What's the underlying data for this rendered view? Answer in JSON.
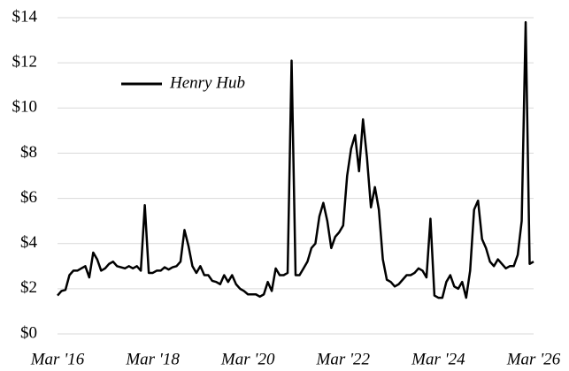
{
  "chart_data": {
    "type": "line",
    "categories": [
      "Mar '16",
      null,
      null,
      null,
      null,
      null,
      null,
      null,
      null,
      null,
      null,
      null,
      null,
      null,
      null,
      null,
      null,
      null,
      null,
      null,
      null,
      null,
      null,
      null,
      "Mar '18",
      null,
      null,
      null,
      null,
      null,
      null,
      null,
      null,
      null,
      null,
      null,
      null,
      null,
      null,
      null,
      null,
      null,
      null,
      null,
      null,
      null,
      null,
      null,
      "Mar '20",
      null,
      null,
      null,
      null,
      null,
      null,
      null,
      null,
      null,
      null,
      null,
      null,
      null,
      null,
      null,
      null,
      null,
      null,
      null,
      null,
      null,
      null,
      null,
      "Mar '22",
      null,
      null,
      null,
      null,
      null,
      null,
      null,
      null,
      null,
      null,
      null,
      null,
      null,
      null,
      null,
      null,
      null,
      null,
      null,
      null,
      null,
      null,
      null,
      "Mar '24",
      null,
      null,
      null,
      null,
      null,
      null,
      null,
      null,
      null,
      null,
      null,
      null,
      null,
      null,
      null,
      null,
      null,
      null,
      null,
      null,
      null,
      null,
      null,
      "Mar '26"
    ],
    "series": [
      {
        "name": "Henry Hub",
        "color": "#000000",
        "values": [
          1.7,
          1.9,
          1.95,
          2.6,
          2.8,
          2.8,
          2.9,
          3.0,
          2.5,
          3.6,
          3.3,
          2.8,
          2.9,
          3.1,
          3.2,
          3.0,
          2.95,
          2.9,
          3.0,
          2.9,
          3.0,
          2.8,
          5.7,
          2.7,
          2.7,
          2.8,
          2.8,
          2.95,
          2.85,
          2.95,
          3.0,
          3.2,
          4.6,
          3.9,
          3.0,
          2.7,
          3.0,
          2.6,
          2.6,
          2.35,
          2.3,
          2.2,
          2.6,
          2.3,
          2.6,
          2.2,
          2.0,
          1.9,
          1.75,
          1.75,
          1.75,
          1.65,
          1.75,
          2.3,
          1.9,
          2.9,
          2.6,
          2.6,
          2.7,
          12.1,
          2.6,
          2.6,
          2.9,
          3.2,
          3.8,
          4.0,
          5.2,
          5.8,
          5.0,
          3.8,
          4.3,
          4.5,
          4.8,
          7.0,
          8.2,
          8.8,
          7.2,
          9.5,
          7.8,
          5.6,
          6.5,
          5.5,
          3.3,
          2.4,
          2.3,
          2.1,
          2.2,
          2.4,
          2.6,
          2.6,
          2.7,
          2.9,
          2.8,
          2.5,
          5.1,
          1.7,
          1.6,
          1.6,
          2.3,
          2.6,
          2.1,
          2.0,
          2.3,
          1.6,
          2.8,
          5.5,
          5.9,
          4.2,
          3.8,
          3.2,
          3.0,
          3.3,
          3.1,
          2.9,
          3.0,
          3.0,
          3.5,
          5.0,
          13.8,
          3.1,
          3.2
        ]
      }
    ],
    "ylim": [
      0,
      14
    ],
    "yticks": [
      {
        "value": 0,
        "label": "$0"
      },
      {
        "value": 2,
        "label": "$2"
      },
      {
        "value": 4,
        "label": "$4"
      },
      {
        "value": 6,
        "label": "$6"
      },
      {
        "value": 8,
        "label": "$8"
      },
      {
        "value": 10,
        "label": "$10"
      },
      {
        "value": 12,
        "label": "$12"
      },
      {
        "value": 14,
        "label": "$14"
      }
    ],
    "grid": true,
    "legend": "upper left"
  }
}
